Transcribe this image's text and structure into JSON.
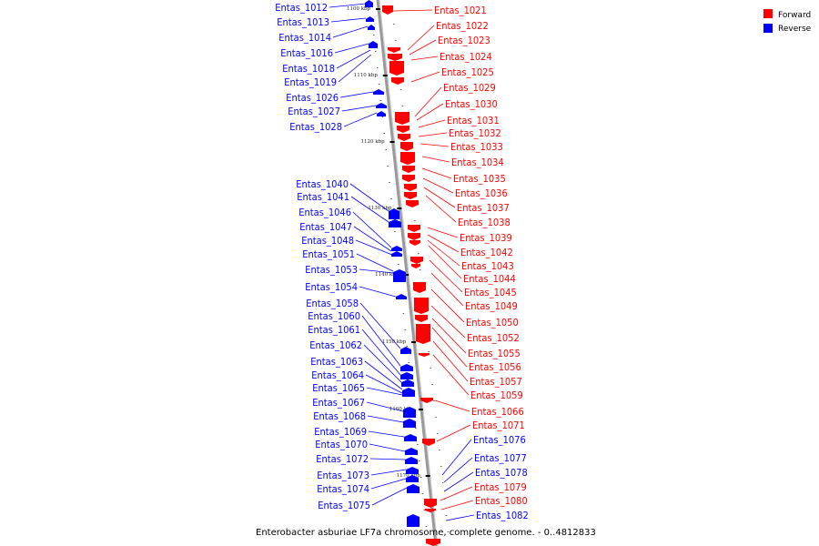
{
  "caption": "Enterobacter asburiae LF7a chromosome, complete genome. - 0..4812833",
  "legend": [
    {
      "label": "Forward",
      "color": "#ff0000"
    },
    {
      "label": "Reverse",
      "color": "#0000ff"
    }
  ],
  "colors": {
    "forward": "#ff0000",
    "reverse": "#0000ff",
    "axis": "#999999"
  },
  "ticks": [
    "1100 kbp",
    "1110 kbp",
    "1120 kbp",
    "1130 kbp",
    "1140 kbp",
    "1150 kbp",
    "1160 kbp",
    "1170 kbp"
  ],
  "reverse_genes": [
    "Entas_1012",
    "Entas_1013",
    "Entas_1014",
    "Entas_1016",
    "Entas_1018",
    "Entas_1019",
    "Entas_1026",
    "Entas_1027",
    "Entas_1028",
    "Entas_1040",
    "Entas_1041",
    "Entas_1046",
    "Entas_1047",
    "Entas_1048",
    "Entas_1051",
    "Entas_1053",
    "Entas_1054",
    "Entas_1058",
    "Entas_1060",
    "Entas_1061",
    "Entas_1062",
    "Entas_1063",
    "Entas_1064",
    "Entas_1065",
    "Entas_1067",
    "Entas_1068",
    "Entas_1069",
    "Entas_1070",
    "Entas_1072",
    "Entas_1073",
    "Entas_1074",
    "Entas_1075"
  ],
  "forward_genes": [
    "Entas_1021",
    "Entas_1022",
    "Entas_1023",
    "Entas_1024",
    "Entas_1025",
    "Entas_1029",
    "Entas_1030",
    "Entas_1031",
    "Entas_1032",
    "Entas_1033",
    "Entas_1034",
    "Entas_1035",
    "Entas_1036",
    "Entas_1037",
    "Entas_1038",
    "Entas_1039",
    "Entas_1042",
    "Entas_1043",
    "Entas_1044",
    "Entas_1045",
    "Entas_1049",
    "Entas_1050",
    "Entas_1052",
    "Entas_1055",
    "Entas_1056",
    "Entas_1057",
    "Entas_1059",
    "Entas_1066",
    "Entas_1071"
  ],
  "reverse_genes_lower": [
    "Entas_1076",
    "Entas_1077",
    "Entas_1078",
    "Entas_1082"
  ],
  "forward_genes_lower": [
    "Entas_1079",
    "Entas_1080"
  ]
}
